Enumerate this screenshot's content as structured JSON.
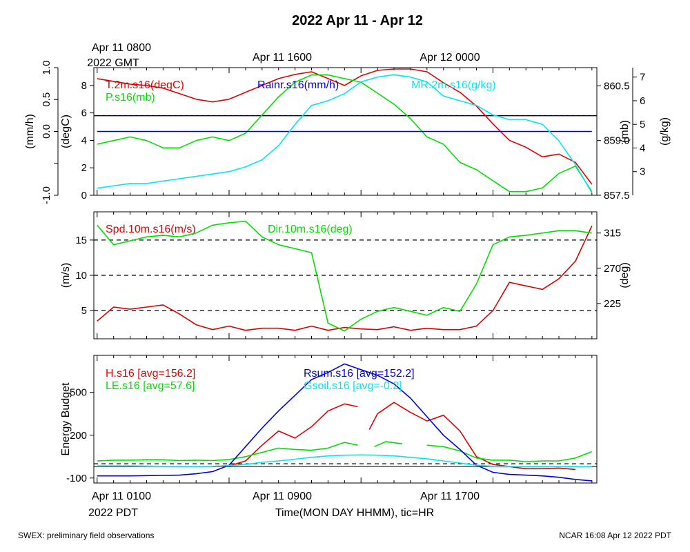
{
  "page": {
    "title": "2022 Apr 11 - Apr 12",
    "top_time_labels": [
      {
        "line1": "Apr 11 0800",
        "line2": "2022 GMT"
      },
      {
        "line1": "Apr 11 1600",
        "line2": ""
      },
      {
        "line1": "Apr 12 0000",
        "line2": ""
      }
    ],
    "bottom_time_labels": [
      {
        "line1": "Apr 11 0100",
        "line2": "2022 PDT"
      },
      {
        "line1": "Apr 11 0900",
        "line2": ""
      },
      {
        "line1": "Apr 11 1700",
        "line2": ""
      }
    ],
    "xlabel": "Time(MON DAY HHMM), tic=HR",
    "footer_left": "SWEX: preliminary field observations",
    "footer_right": "NCAR 16:08 Apr 12 2022 PDT"
  },
  "colors": {
    "red": "#e00000",
    "green": "#00e000",
    "blue": "#0000e0",
    "cyan": "#00e8f0",
    "black": "#000000"
  },
  "chart_data": [
    {
      "type": "line",
      "x_unit": "hours since Apr 11 0100 PDT",
      "xlim": [
        -0.2,
        30.3
      ],
      "axes": [
        {
          "id": "rain",
          "side": "left",
          "offset": "outer",
          "label": "(mm/h)",
          "lim": [
            -1.0,
            1.0
          ],
          "ticks": [
            -1.0,
            -0.5,
            0.0,
            0.5,
            1.0
          ],
          "tick_labels": [
            "-1.0",
            "",
            "0.0",
            "0.5",
            "1.0"
          ]
        },
        {
          "id": "degc",
          "side": "left",
          "offset": "inner",
          "label": "(degC)",
          "lim": [
            0,
            9.3
          ],
          "ticks": [
            0,
            2,
            4,
            6,
            8
          ],
          "tick_labels": [
            "0",
            "2",
            "4",
            "6",
            "8"
          ]
        },
        {
          "id": "mb",
          "side": "right",
          "offset": "inner",
          "label": "(mb)",
          "lim": [
            857.5,
            861.0
          ],
          "ticks": [
            857.5,
            859.0,
            860.5
          ],
          "tick_labels": [
            "857.5",
            "859.0",
            "860.5"
          ]
        },
        {
          "id": "gkg",
          "side": "right",
          "offset": "outer",
          "label": "(g/kg)",
          "lim": [
            2.0,
            7.4
          ],
          "ticks": [
            3,
            4,
            5,
            6,
            7
          ],
          "tick_labels": [
            "3",
            "4",
            "5",
            "6",
            "7"
          ]
        }
      ],
      "hlines": [
        {
          "axis": "degc",
          "y": 5.8,
          "style": "solid-black-blue-dashed"
        }
      ],
      "series": [
        {
          "name": "T.2m.s16(degC)",
          "color": "red",
          "axis": "degc",
          "x": [
            0,
            1,
            2,
            3,
            4,
            5,
            6,
            7,
            8,
            9,
            10,
            11,
            12,
            13,
            14,
            15,
            16,
            17,
            18,
            19,
            20,
            21,
            22,
            23,
            24,
            25,
            26,
            27,
            28,
            29,
            30
          ],
          "y": [
            8.5,
            8.3,
            8.1,
            8.0,
            7.8,
            7.4,
            7.0,
            6.8,
            7.0,
            7.5,
            8.0,
            8.5,
            8.8,
            9.0,
            8.5,
            8.0,
            8.7,
            9.1,
            9.2,
            9.2,
            9.0,
            8.2,
            7.5,
            6.5,
            5.2,
            4.0,
            3.5,
            2.8,
            3.0,
            2.4,
            0.8
          ]
        },
        {
          "name": "P.s16(mb)",
          "color": "green",
          "axis": "mb",
          "x": [
            0,
            1,
            2,
            3,
            4,
            5,
            6,
            7,
            8,
            9,
            10,
            11,
            12,
            13,
            14,
            15,
            16,
            17,
            18,
            19,
            20,
            21,
            22,
            23,
            24,
            25,
            26,
            27,
            28,
            29,
            30
          ],
          "y": [
            858.9,
            859.0,
            859.1,
            859.0,
            858.8,
            858.8,
            859.0,
            859.1,
            859.0,
            859.2,
            859.7,
            860.2,
            860.6,
            860.8,
            860.8,
            860.7,
            860.6,
            860.3,
            860.0,
            859.6,
            859.1,
            858.9,
            858.4,
            858.2,
            857.9,
            857.6,
            857.6,
            857.7,
            858.1,
            858.3,
            857.6
          ]
        },
        {
          "name": "Rainr.s16(mm/h)",
          "color": "blue",
          "axis": "rain",
          "x": [
            0,
            30
          ],
          "y": [
            0.0,
            0.0
          ]
        },
        {
          "name": "MR.2m.s16(g/kg)",
          "color": "cyan",
          "axis": "gkg",
          "x": [
            0,
            1,
            2,
            3,
            4,
            5,
            6,
            7,
            8,
            9,
            10,
            11,
            12,
            13,
            14,
            15,
            16,
            17,
            18,
            19,
            20,
            21,
            22,
            23,
            24,
            25,
            26,
            27,
            28,
            29,
            30
          ],
          "y": [
            2.3,
            2.4,
            2.5,
            2.5,
            2.6,
            2.7,
            2.8,
            2.9,
            3.0,
            3.2,
            3.5,
            4.1,
            5.0,
            5.8,
            6.0,
            6.3,
            6.8,
            7.0,
            7.1,
            7.0,
            6.8,
            6.2,
            6.0,
            5.8,
            5.4,
            5.2,
            5.2,
            5.0,
            4.3,
            3.3,
            2.1
          ]
        }
      ]
    },
    {
      "type": "line",
      "x_unit": "hours since Apr 11 0100 PDT",
      "xlim": [
        -0.2,
        30.3
      ],
      "axes": [
        {
          "id": "ms",
          "side": "left",
          "offset": "inner",
          "label": "(m/s)",
          "lim": [
            1.0,
            19.0
          ],
          "ticks": [
            5,
            10,
            15
          ],
          "tick_labels": [
            "5",
            "10",
            "15"
          ]
        },
        {
          "id": "deg",
          "side": "right",
          "offset": "inner",
          "label": "(deg)",
          "lim": [
            180,
            342
          ],
          "ticks": [
            225,
            270,
            315
          ],
          "tick_labels": [
            "225",
            "270",
            "315"
          ]
        }
      ],
      "hlines": [
        {
          "axis": "ms",
          "y": 15,
          "style": "dashed"
        },
        {
          "axis": "ms",
          "y": 10,
          "style": "dashed"
        },
        {
          "axis": "ms",
          "y": 5,
          "style": "dashed"
        }
      ],
      "series": [
        {
          "name": "Spd.10m.s16(m/s)",
          "color": "red",
          "axis": "ms",
          "x": [
            0,
            1,
            2,
            3,
            4,
            5,
            6,
            7,
            8,
            9,
            10,
            11,
            12,
            13,
            14,
            15,
            16,
            17,
            18,
            19,
            20,
            21,
            22,
            23,
            24,
            25,
            26,
            27,
            28,
            29,
            30
          ],
          "y": [
            3.5,
            5.5,
            5.2,
            5.5,
            5.8,
            4.5,
            3.0,
            2.3,
            2.8,
            2.2,
            2.5,
            2.5,
            2.2,
            2.8,
            2.2,
            2.6,
            2.4,
            2.3,
            2.7,
            2.2,
            2.5,
            2.3,
            2.3,
            2.8,
            5.0,
            9.0,
            8.5,
            8.0,
            9.5,
            12.0,
            17.0
          ]
        },
        {
          "name": "Dir.10m.s16(deg)",
          "color": "green",
          "axis": "deg",
          "x": [
            0,
            1,
            2,
            3,
            4,
            5,
            6,
            7,
            8,
            9,
            10,
            11,
            12,
            13,
            14,
            15,
            16,
            17,
            18,
            19,
            20,
            21,
            22,
            23,
            24,
            25,
            26,
            27,
            28,
            29,
            30
          ],
          "y": [
            325,
            300,
            305,
            310,
            312,
            310,
            315,
            325,
            328,
            330,
            310,
            300,
            295,
            290,
            200,
            190,
            205,
            215,
            220,
            215,
            210,
            220,
            215,
            250,
            300,
            310,
            312,
            315,
            318,
            318,
            315
          ]
        }
      ]
    },
    {
      "type": "line",
      "x_unit": "hours since Apr 11 0100 PDT",
      "xlim": [
        -0.2,
        30.3
      ],
      "axes": [
        {
          "id": "wm2",
          "side": "left",
          "offset": "inner",
          "label": "Energy Budget",
          "lim": [
            -135,
            760
          ],
          "ticks": [
            -100,
            200,
            500
          ],
          "tick_labels": [
            "-100",
            "200",
            "500"
          ]
        }
      ],
      "hlines": [
        {
          "axis": "wm2",
          "y": 0,
          "style": "dashed"
        },
        {
          "axis": "wm2",
          "y": 0,
          "style": "solid"
        }
      ],
      "series": [
        {
          "name": "H.s16",
          "legend": "H.s16 [avg=156.2]",
          "color": "red",
          "axis": "wm2",
          "x": [
            7,
            8,
            9,
            10,
            11,
            12,
            13,
            14,
            15,
            15.8,
            null,
            16.5,
            17,
            18,
            19,
            20,
            21,
            22,
            23,
            24,
            25,
            26,
            27,
            28,
            29
          ],
          "y": [
            -20,
            -15,
            20,
            130,
            230,
            180,
            260,
            370,
            420,
            400,
            null,
            240,
            350,
            430,
            360,
            300,
            340,
            230,
            50,
            -5,
            -20,
            -35,
            -35,
            -30,
            -40
          ]
        },
        {
          "name": "LE.s16",
          "legend": "LE.s16 [avg=57.6]",
          "color": "green",
          "axis": "wm2",
          "x": [
            0,
            1,
            2,
            3,
            4,
            5,
            6,
            7,
            8,
            9,
            10,
            11,
            12,
            13,
            14,
            15,
            15.8,
            null,
            16.8,
            17.5,
            18.5,
            null,
            20,
            21,
            22,
            23,
            24,
            25,
            26,
            27,
            28,
            29,
            30
          ],
          "y": [
            20,
            25,
            25,
            28,
            28,
            22,
            25,
            22,
            30,
            50,
            80,
            110,
            100,
            95,
            110,
            150,
            130,
            null,
            120,
            155,
            140,
            null,
            130,
            120,
            90,
            40,
            25,
            25,
            15,
            20,
            20,
            40,
            85
          ]
        },
        {
          "name": "Rsum.s16",
          "legend": "Rsum.s16 [avg=152.2]",
          "color": "blue",
          "axis": "wm2",
          "x": [
            0,
            1,
            2,
            3,
            4,
            5,
            6,
            7,
            8,
            9,
            10,
            11,
            12,
            13,
            14,
            15,
            16,
            17,
            18,
            19,
            20,
            21,
            22,
            23,
            24,
            25,
            26,
            27,
            28,
            29,
            30
          ],
          "y": [
            -85,
            -85,
            -85,
            -83,
            -82,
            -80,
            -70,
            -55,
            -10,
            120,
            250,
            370,
            480,
            590,
            640,
            700,
            660,
            620,
            560,
            460,
            330,
            200,
            100,
            -10,
            -60,
            -75,
            -80,
            -85,
            -95,
            -110,
            -120
          ]
        },
        {
          "name": "Gsoil.s16",
          "legend": "Gsoil.s16 [avg=-0.2]",
          "color": "cyan",
          "axis": "wm2",
          "x": [
            0,
            2,
            4,
            6,
            7,
            8,
            9,
            10,
            11,
            12,
            13,
            14,
            15,
            16,
            17,
            18,
            19,
            20,
            21,
            22,
            23,
            24,
            26,
            28,
            30
          ],
          "y": [
            -15,
            -15,
            -18,
            -20,
            -18,
            -12,
            -5,
            10,
            20,
            32,
            45,
            55,
            60,
            62,
            60,
            55,
            45,
            35,
            20,
            5,
            -10,
            -18,
            -20,
            -20,
            -20
          ]
        }
      ]
    }
  ]
}
